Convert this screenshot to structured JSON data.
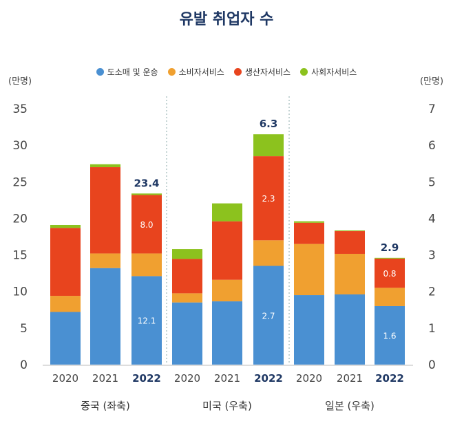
{
  "chart_data": {
    "type": "bar",
    "stacked": true,
    "title": "유발 취업자 수",
    "left_axis_label": "(만명)",
    "right_axis_label": "(만명)",
    "left_ylim": [
      0,
      35
    ],
    "right_ylim": [
      0,
      7
    ],
    "left_ticks": [
      "0",
      "5",
      "10",
      "15",
      "20",
      "25",
      "30",
      "35"
    ],
    "right_ticks": [
      "0",
      "1",
      "2",
      "3",
      "4",
      "5",
      "6",
      "7"
    ],
    "legend": [
      {
        "name": "도소매 및 운송",
        "color": "#4a90d2"
      },
      {
        "name": "소비자서비스",
        "color": "#f0a030"
      },
      {
        "name": "생산자서비스",
        "color": "#e8441e"
      },
      {
        "name": "사회자서비스",
        "color": "#8cc21e"
      }
    ],
    "groups": [
      {
        "label": "중국 (좌축)",
        "axis": "left",
        "bars": [
          {
            "year": "2020",
            "values": [
              7.2,
              2.2,
              9.3,
              0.4
            ]
          },
          {
            "year": "2021",
            "values": [
              13.2,
              2.0,
              11.8,
              0.4
            ]
          },
          {
            "year": "2022",
            "values": [
              12.1,
              3.1,
              8.0,
              0.2
            ],
            "total_label": "23.4",
            "segment_labels": [
              "12.1",
              "",
              "8.0",
              ""
            ]
          }
        ]
      },
      {
        "label": "미국 (우축)",
        "axis": "right",
        "bars": [
          {
            "year": "2020",
            "values": [
              1.7,
              0.25,
              0.94,
              0.27
            ]
          },
          {
            "year": "2021",
            "values": [
              1.73,
              0.59,
              1.6,
              0.49
            ]
          },
          {
            "year": "2022",
            "values": [
              2.7,
              0.7,
              2.3,
              0.6
            ],
            "total_label": "6.3",
            "segment_labels": [
              "2.7",
              "",
              "2.3",
              ""
            ]
          }
        ]
      },
      {
        "label": "일본 (우축)",
        "axis": "right",
        "bars": [
          {
            "year": "2020",
            "values": [
              1.9,
              1.4,
              0.58,
              0.04
            ]
          },
          {
            "year": "2021",
            "values": [
              1.92,
              1.11,
              0.62,
              0.02
            ]
          },
          {
            "year": "2022",
            "values": [
              1.6,
              0.5,
              0.8,
              0.02
            ],
            "total_label": "2.9",
            "segment_labels": [
              "1.6",
              "",
              "0.8",
              ""
            ]
          }
        ]
      }
    ]
  }
}
